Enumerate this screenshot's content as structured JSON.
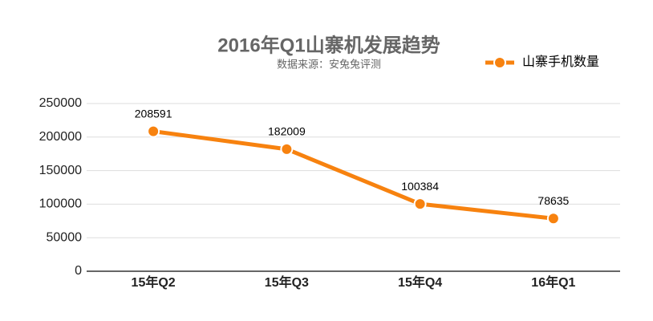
{
  "chart_data": {
    "type": "line",
    "title": "2016年Q1山寨机发展趋势",
    "subtitle": "数据来源：安兔兔评测",
    "categories": [
      "15年Q2",
      "15年Q3",
      "15年Q4",
      "16年Q1"
    ],
    "series": [
      {
        "name": "山寨手机数量",
        "color": "#f7820f",
        "values": [
          208591,
          182009,
          100384,
          78635
        ]
      }
    ],
    "ylim": [
      0,
      250000
    ],
    "yticks": [
      0,
      50000,
      100000,
      150000,
      200000,
      250000
    ],
    "grid": true,
    "legend": "top-right"
  }
}
